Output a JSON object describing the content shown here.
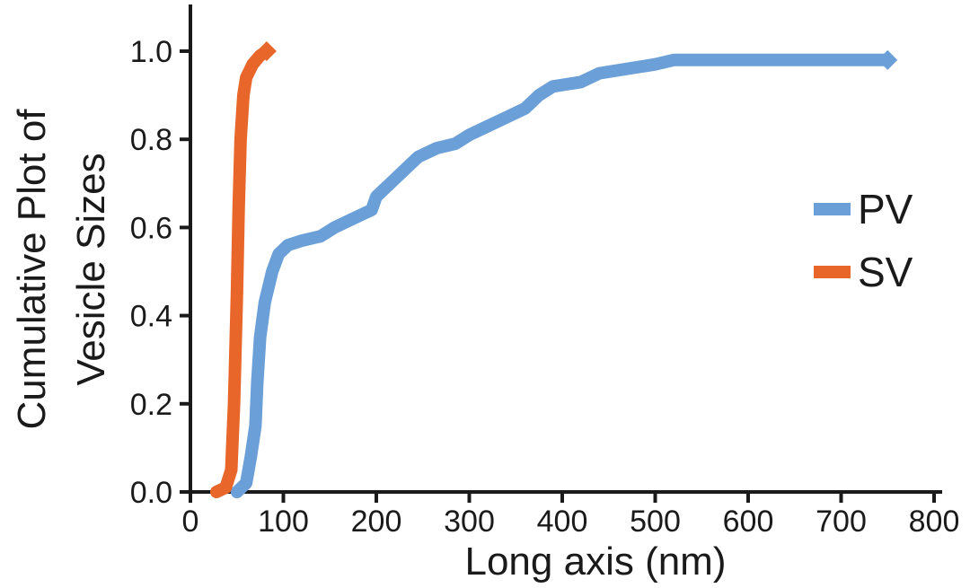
{
  "chart_data": {
    "type": "line",
    "title": "",
    "xlabel": "Long axis (nm)",
    "ylabel": [
      "Cumulative Plot of",
      "Vesicle Sizes"
    ],
    "xlim": [
      0,
      800
    ],
    "ylim": [
      0,
      1.1
    ],
    "x_ticks": [
      "0",
      "100",
      "200",
      "300",
      "400",
      "500",
      "600",
      "700",
      "800"
    ],
    "y_ticks": [
      "0.0",
      "0.2",
      "0.4",
      "0.6",
      "0.8",
      "1.0"
    ],
    "grid": false,
    "legend_position": "right",
    "series": [
      {
        "name": "PV",
        "color": "#6a9fd8",
        "points": [
          [
            50,
            0.0
          ],
          [
            60,
            0.02
          ],
          [
            65,
            0.08
          ],
          [
            70,
            0.15
          ],
          [
            72,
            0.25
          ],
          [
            75,
            0.35
          ],
          [
            80,
            0.43
          ],
          [
            88,
            0.5
          ],
          [
            95,
            0.54
          ],
          [
            105,
            0.56
          ],
          [
            120,
            0.57
          ],
          [
            140,
            0.58
          ],
          [
            155,
            0.6
          ],
          [
            175,
            0.62
          ],
          [
            195,
            0.64
          ],
          [
            200,
            0.67
          ],
          [
            215,
            0.7
          ],
          [
            230,
            0.73
          ],
          [
            245,
            0.76
          ],
          [
            265,
            0.78
          ],
          [
            285,
            0.79
          ],
          [
            300,
            0.81
          ],
          [
            320,
            0.83
          ],
          [
            340,
            0.85
          ],
          [
            360,
            0.87
          ],
          [
            375,
            0.9
          ],
          [
            390,
            0.92
          ],
          [
            420,
            0.93
          ],
          [
            440,
            0.95
          ],
          [
            470,
            0.96
          ],
          [
            500,
            0.97
          ],
          [
            520,
            0.98
          ],
          [
            600,
            0.98
          ],
          [
            750,
            0.98
          ]
        ]
      },
      {
        "name": "SV",
        "color": "#e8662a",
        "points": [
          [
            28,
            0.0
          ],
          [
            38,
            0.01
          ],
          [
            44,
            0.05
          ],
          [
            47,
            0.2
          ],
          [
            50,
            0.45
          ],
          [
            52,
            0.65
          ],
          [
            54,
            0.8
          ],
          [
            57,
            0.9
          ],
          [
            60,
            0.94
          ],
          [
            67,
            0.97
          ],
          [
            75,
            0.99
          ],
          [
            82,
            1.0
          ]
        ]
      }
    ]
  }
}
